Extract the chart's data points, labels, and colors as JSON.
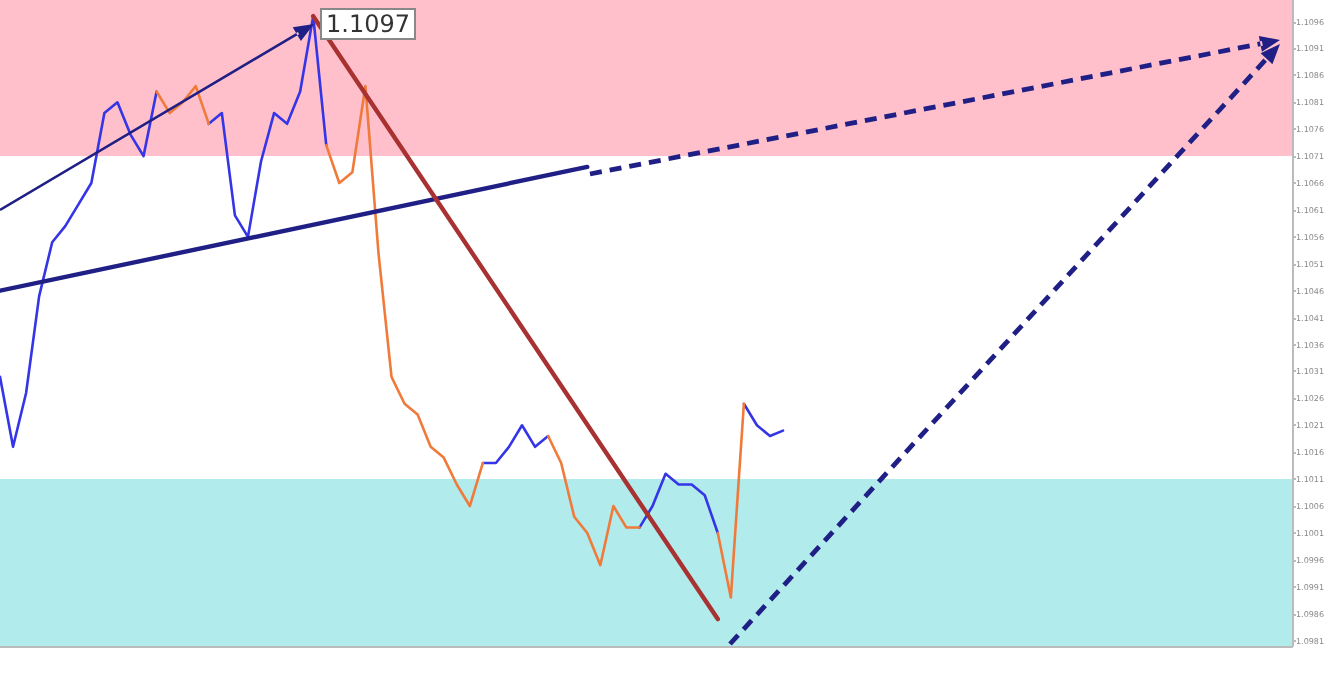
{
  "chart_data": {
    "type": "line",
    "categories": [
      null,
      null,
      null,
      null,
      null,
      null,
      null,
      null,
      null,
      null,
      null,
      null,
      null,
      null,
      null,
      null,
      null,
      null,
      null,
      null,
      null,
      null,
      null,
      null,
      null,
      null,
      null,
      null,
      null,
      null,
      null,
      null,
      null,
      null,
      null,
      null,
      null,
      null,
      null,
      null,
      null,
      null,
      null,
      null,
      null,
      null,
      null,
      null,
      null,
      null,
      null,
      null,
      null,
      null,
      null,
      null,
      null,
      null,
      null,
      null,
      null,
      null,
      null,
      null,
      null,
      null,
      null,
      null,
      null,
      null,
      null,
      null,
      null,
      null,
      null,
      null,
      null,
      null,
      null,
      null,
      null,
      null,
      null,
      null,
      null,
      null,
      null,
      null,
      null,
      null,
      null,
      null,
      null,
      null,
      null,
      null,
      null,
      null,
      null,
      null
    ],
    "series": [
      {
        "color": "#3535e8",
        "values": [
          1.103,
          1.1017,
          1.1027,
          1.1045,
          1.1055,
          1.1058,
          1.1062,
          1.1066,
          1.1079,
          1.1081,
          1.1075,
          1.1071,
          1.1083,
          null,
          null,
          null,
          1.1077,
          1.1079,
          1.106,
          1.1056,
          1.107,
          1.1079,
          1.1077,
          1.1083,
          1.1097,
          1.1073,
          null,
          null,
          null,
          null,
          null,
          null,
          null,
          null,
          null,
          null,
          null,
          1.1014,
          1.1014,
          1.1017,
          1.1021,
          1.1017,
          1.1019,
          null,
          null,
          null,
          null,
          null,
          null,
          1.1002,
          1.1006,
          1.1012,
          1.101,
          1.101,
          1.1008,
          1.1001,
          null,
          1.1025,
          1.1021,
          1.1019,
          1.102,
          null,
          null,
          null,
          null,
          null,
          null,
          null,
          null,
          null,
          null,
          null,
          null,
          null,
          null,
          null,
          null,
          null,
          null,
          null,
          null,
          null,
          null,
          null,
          null,
          null,
          null,
          null,
          null,
          null,
          null,
          null,
          null,
          null,
          null,
          null,
          null,
          null,
          null,
          null
        ]
      },
      {
        "color": "#f07a3a",
        "values": [
          null,
          null,
          null,
          null,
          null,
          null,
          null,
          null,
          null,
          null,
          null,
          null,
          1.1083,
          1.1079,
          1.1081,
          1.1084,
          1.1077,
          null,
          null,
          null,
          null,
          null,
          null,
          null,
          null,
          1.1073,
          1.1066,
          1.1068,
          1.1084,
          1.1053,
          1.103,
          1.1025,
          1.1023,
          1.1017,
          1.1015,
          1.101,
          1.1006,
          1.1014,
          null,
          null,
          null,
          null,
          1.1019,
          1.1014,
          1.1004,
          1.1001,
          1.0995,
          1.1006,
          1.1002,
          1.1002,
          null,
          null,
          null,
          null,
          null,
          1.1001,
          1.0989,
          1.1025,
          null,
          null,
          null,
          null,
          null,
          null,
          null,
          null,
          null,
          null,
          null,
          null,
          null,
          null,
          null,
          null,
          null,
          null,
          null,
          null,
          null,
          null,
          null,
          null,
          null,
          null,
          null,
          null,
          null,
          null,
          null,
          null,
          null,
          null,
          null,
          null,
          null,
          null,
          null,
          null,
          null,
          null
        ]
      },
      {
        "color": "#1f1f85",
        "line_style": "solid",
        "values": [
          1.1046,
          null,
          null,
          null,
          null,
          null,
          null,
          null,
          null,
          null,
          null,
          null,
          null,
          null,
          null,
          null,
          null,
          null,
          null,
          null,
          null,
          null,
          null,
          null,
          null,
          null,
          null,
          null,
          null,
          null,
          null,
          null,
          null,
          null,
          null,
          null,
          null,
          null,
          null,
          null,
          null,
          null,
          null,
          null,
          null,
          1.1069,
          null,
          null,
          null,
          null,
          null,
          null,
          null,
          null,
          null,
          null,
          null,
          null,
          null,
          null,
          null,
          null,
          null,
          null,
          null,
          null,
          null,
          null,
          null,
          null,
          null,
          null,
          null,
          null,
          null,
          null,
          null,
          null,
          null,
          null,
          null,
          null,
          null,
          null,
          null,
          null,
          null,
          null,
          null,
          null,
          null,
          null,
          null,
          null,
          null,
          null,
          null,
          null,
          null,
          null
        ]
      },
      {
        "color": "#a83232",
        "line_style": "solid",
        "values": [
          null,
          null,
          null,
          null,
          null,
          null,
          null,
          null,
          null,
          null,
          null,
          null,
          null,
          null,
          null,
          null,
          null,
          null,
          null,
          null,
          null,
          null,
          null,
          null,
          1.1097,
          null,
          null,
          null,
          null,
          null,
          null,
          null,
          null,
          null,
          null,
          null,
          null,
          null,
          null,
          null,
          null,
          null,
          null,
          null,
          null,
          null,
          null,
          null,
          null,
          null,
          null,
          null,
          null,
          null,
          null,
          1.0985,
          null,
          null,
          null,
          null,
          null,
          null,
          null,
          null,
          null,
          null,
          null,
          null,
          null,
          null,
          null,
          null,
          null,
          null,
          null,
          null,
          null,
          null,
          null,
          null,
          null,
          null,
          null,
          null,
          null,
          null,
          null,
          null,
          null,
          null,
          null,
          null,
          null,
          null,
          null,
          null,
          null,
          null,
          null,
          null
        ]
      }
    ],
    "ylim": [
      1.098,
      1.11
    ],
    "yticks": [
      1.0981,
      1.0986,
      1.0991,
      1.0996,
      1.1001,
      1.1006,
      1.1011,
      1.1016,
      1.1021,
      1.1026,
      1.1031,
      1.1036,
      1.1041,
      1.1046,
      1.1051,
      1.1056,
      1.1061,
      1.1066,
      1.1071,
      1.1076,
      1.1081,
      1.1086,
      1.1091,
      1.1096
    ],
    "bands": [
      {
        "axis": "y",
        "from": 1.1071,
        "to": 1.11,
        "color": "#ffc0cb"
      },
      {
        "axis": "y",
        "from": 1.098,
        "to": 1.1011,
        "color": "#b2ebeb"
      }
    ],
    "annotations": [
      "1.1097"
    ],
    "tick_labels": "y",
    "marker": "none",
    "grid": false
  }
}
